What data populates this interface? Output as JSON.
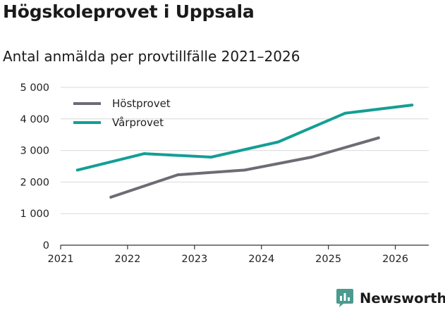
{
  "title": "Högskoleprovet i Uppsala",
  "subtitle": "Antal anmälda per provtillfälle 2021–2026",
  "brand": {
    "name": "Newsworthy",
    "icon": "newsworthy-logo-icon",
    "color": "#4a9a8f"
  },
  "colors": {
    "hostprovet": "#6e6b75",
    "varprovet": "#149e95",
    "grid": "#d9d9d9"
  },
  "chart_data": {
    "type": "line",
    "title": "Antal anmälda per provtillfälle 2021–2026",
    "xlabel": "",
    "ylabel": "",
    "xlim": [
      2021,
      2026.5
    ],
    "ylim": [
      0,
      5000
    ],
    "x_ticks": [
      2021,
      2022,
      2023,
      2024,
      2025,
      2026
    ],
    "x_tick_labels": [
      "2021",
      "2022",
      "2023",
      "2024",
      "2025",
      "2026"
    ],
    "y_ticks": [
      0,
      1000,
      2000,
      3000,
      4000,
      5000
    ],
    "y_tick_labels": [
      "0",
      "1 000",
      "2 000",
      "3 000",
      "4 000",
      "5 000"
    ],
    "grid": true,
    "legend_position": "top-left",
    "series": [
      {
        "name": "Höstprovet",
        "color": "#6e6b75",
        "points": [
          [
            2021.75,
            1520
          ],
          [
            2022.75,
            2230
          ],
          [
            2023.75,
            2380
          ],
          [
            2024.75,
            2790
          ],
          [
            2025.75,
            3400
          ]
        ]
      },
      {
        "name": "Vårprovet",
        "color": "#149e95",
        "points": [
          [
            2021.25,
            2380
          ],
          [
            2022.25,
            2900
          ],
          [
            2023.25,
            2790
          ],
          [
            2024.25,
            3270
          ],
          [
            2025.25,
            4180
          ],
          [
            2026.25,
            4440
          ]
        ]
      }
    ]
  }
}
